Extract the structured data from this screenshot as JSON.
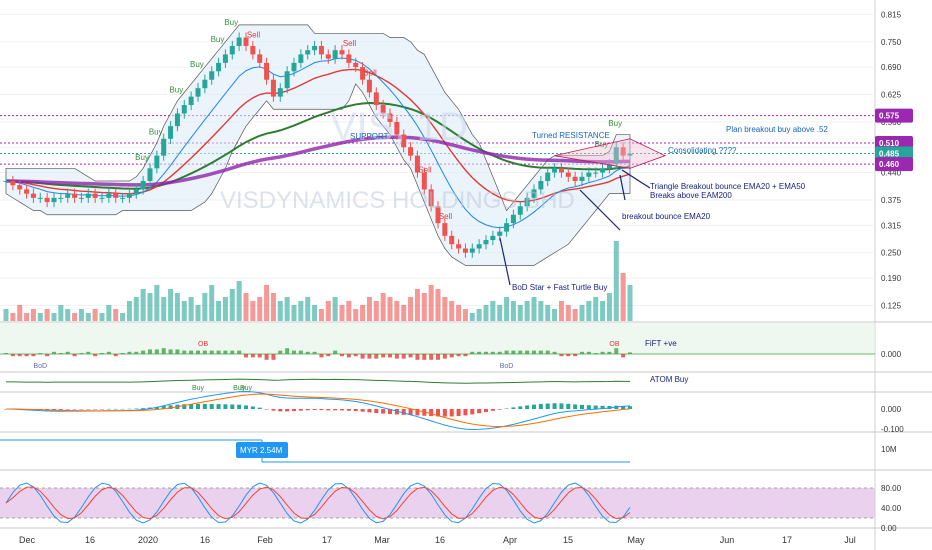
{
  "watermark": {
    "line1": "VIS, 1D",
    "line2": "VISDYNAMICS HOLDINGS BHD"
  },
  "chart_data": [
    {
      "type": "candlestick",
      "panel": "price",
      "x_axis_labels": [
        "Dec",
        "16",
        "2020",
        "16",
        "Feb",
        "17",
        "Mar",
        "16",
        "Apr",
        "15",
        "May",
        "Jun",
        "17",
        "Jul"
      ],
      "y_ticks": [
        0.815,
        0.75,
        0.69,
        0.625,
        0.56,
        0.5,
        0.44,
        0.375,
        0.315,
        0.25,
        0.19,
        0.125
      ],
      "ylim": [
        0.1,
        0.83
      ],
      "price_labels": [
        {
          "value": 0.575,
          "text": "0.575",
          "color": "#9c27b0"
        },
        {
          "value": 0.51,
          "text": "0.510",
          "color": "#9c27b0"
        },
        {
          "value": 0.485,
          "text": "0.485",
          "color": "#26a69a"
        },
        {
          "value": 0.46,
          "text": "0.460",
          "color": "#9c27b0"
        }
      ],
      "annotations": [
        "Plan breakout buy above .52",
        "Consolidating ????",
        "Turned RESISTANCE",
        "SUPPORT",
        "Triangle Breakout bounce EMA20 + EMA50",
        "Breaks above EAM200",
        "breakout bounce EMA20",
        "BoD Star + Fast Turtle Buy"
      ],
      "signals": [
        "Buy",
        "Sell"
      ],
      "close_series": [
        0.42,
        0.41,
        0.4,
        0.39,
        0.38,
        0.38,
        0.37,
        0.38,
        0.38,
        0.39,
        0.38,
        0.38,
        0.39,
        0.38,
        0.38,
        0.39,
        0.38,
        0.38,
        0.39,
        0.4,
        0.42,
        0.45,
        0.48,
        0.52,
        0.55,
        0.58,
        0.6,
        0.62,
        0.64,
        0.66,
        0.68,
        0.7,
        0.72,
        0.74,
        0.76,
        0.74,
        0.72,
        0.7,
        0.66,
        0.62,
        0.64,
        0.68,
        0.7,
        0.72,
        0.73,
        0.74,
        0.72,
        0.71,
        0.73,
        0.72,
        0.7,
        0.69,
        0.66,
        0.63,
        0.6,
        0.58,
        0.56,
        0.53,
        0.5,
        0.48,
        0.44,
        0.4,
        0.36,
        0.32,
        0.29,
        0.27,
        0.26,
        0.25,
        0.26,
        0.27,
        0.28,
        0.29,
        0.3,
        0.32,
        0.34,
        0.36,
        0.38,
        0.4,
        0.42,
        0.44,
        0.45,
        0.44,
        0.43,
        0.42,
        0.43,
        0.44,
        0.44,
        0.45,
        0.46,
        0.5,
        0.48,
        0.485
      ],
      "volume_series": [
        0.3,
        0.2,
        0.4,
        0.2,
        0.3,
        0.2,
        0.3,
        0.2,
        0.4,
        0.3,
        0.2,
        0.3,
        0.2,
        0.3,
        0.2,
        0.4,
        0.3,
        0.2,
        0.5,
        0.6,
        0.8,
        0.7,
        0.9,
        0.6,
        0.8,
        0.7,
        0.5,
        0.6,
        0.4,
        0.7,
        0.9,
        0.5,
        0.6,
        0.8,
        1.0,
        0.7,
        0.5,
        0.6,
        0.9,
        0.7,
        0.5,
        0.6,
        0.4,
        0.5,
        0.6,
        0.4,
        0.3,
        0.5,
        0.6,
        0.4,
        0.5,
        0.3,
        0.4,
        0.6,
        0.5,
        0.7,
        0.6,
        0.5,
        0.4,
        0.6,
        0.8,
        0.7,
        0.9,
        0.8,
        0.6,
        0.5,
        0.4,
        0.3,
        0.2,
        0.3,
        0.4,
        0.5,
        0.4,
        0.6,
        0.5,
        0.4,
        0.5,
        0.6,
        0.5,
        0.4,
        0.3,
        0.5,
        0.4,
        0.3,
        0.4,
        0.5,
        0.6,
        0.5,
        0.7,
        2.0,
        1.2,
        0.9
      ]
    },
    {
      "type": "histogram",
      "panel": "FiFT",
      "label": "FiFT +ve",
      "y_ticks": [
        0.0
      ],
      "markers": [
        "BoD",
        "OB"
      ]
    },
    {
      "type": "line",
      "panel": "ATOM",
      "label": "ATOM Buy",
      "markers": [
        "Buy"
      ]
    },
    {
      "type": "histogram",
      "panel": "MACD",
      "y_ticks": [
        0.0,
        -0.1
      ],
      "y_tick_labels": [
        "0.000",
        "-0.100"
      ]
    },
    {
      "type": "line",
      "panel": "volume-flow",
      "label": "MYR 2.54M",
      "y_tick_labels": [
        "10M"
      ]
    },
    {
      "type": "line",
      "panel": "stochastic",
      "y_ticks": [
        80,
        40,
        0
      ],
      "y_tick_labels": [
        "80.00",
        "40.00",
        "0.00"
      ],
      "band": [
        20,
        80
      ]
    }
  ]
}
